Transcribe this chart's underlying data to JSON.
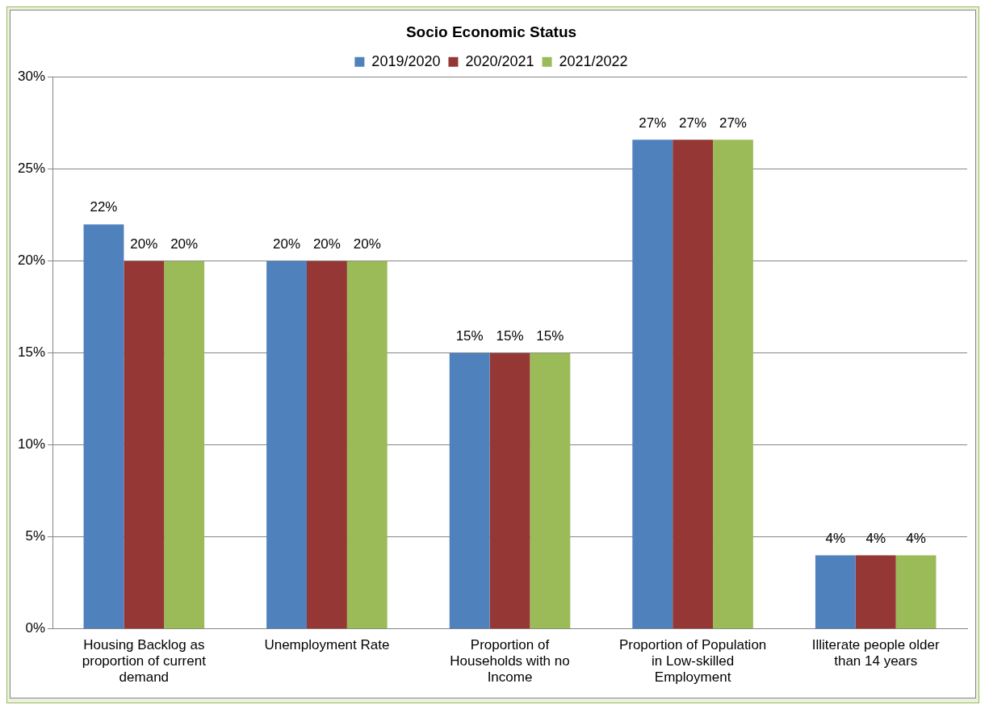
{
  "chart_data": {
    "type": "bar",
    "title": "Socio Economic Status",
    "categories": [
      "Housing Backlog as proportion of current demand",
      "Unemployment Rate",
      "Proportion of Households with no Income",
      "Proportion of Population in Low-skilled Employment",
      "Illiterate people older than 14 years"
    ],
    "series": [
      {
        "name": "2019/2020",
        "color": "#4f81bd",
        "values": [
          22,
          20,
          15,
          26.6,
          4
        ],
        "value_labels": [
          "22%",
          "20%",
          "15%",
          "27%",
          "4%"
        ]
      },
      {
        "name": "2020/2021",
        "color": "#953735",
        "values": [
          20,
          20,
          15,
          26.6,
          4
        ],
        "value_labels": [
          "20%",
          "20%",
          "15%",
          "27%",
          "4%"
        ]
      },
      {
        "name": "2021/2022",
        "color": "#9bbb59",
        "values": [
          20,
          20,
          15,
          26.6,
          4
        ],
        "value_labels": [
          "20%",
          "20%",
          "15%",
          "27%",
          "4%"
        ]
      }
    ],
    "ylim": [
      0,
      30
    ],
    "yticks": [
      {
        "value": 0,
        "label": "0%"
      },
      {
        "value": 5,
        "label": "5%"
      },
      {
        "value": 10,
        "label": "10%"
      },
      {
        "value": 15,
        "label": "15%"
      },
      {
        "value": 20,
        "label": "20%"
      },
      {
        "value": 25,
        "label": "25%"
      },
      {
        "value": 30,
        "label": "30%"
      }
    ],
    "grid": "y",
    "legend": "top"
  }
}
